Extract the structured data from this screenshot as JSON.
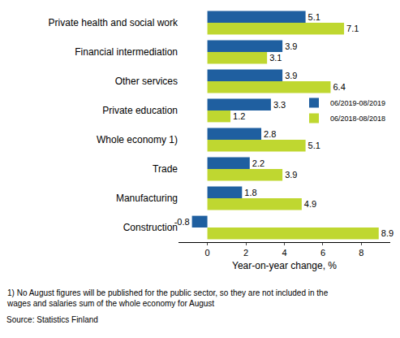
{
  "chart_data": {
    "type": "bar",
    "orientation": "horizontal",
    "categories": [
      "Private health and social work",
      "Financial intermediation",
      "Other services",
      "Private education",
      "Whole economy 1)",
      "Trade",
      "Manufacturing",
      "Construction"
    ],
    "series": [
      {
        "name": "06/2019-08/2019",
        "color": "#1f5fa0",
        "values": [
          5.1,
          3.9,
          3.9,
          3.3,
          2.8,
          2.2,
          1.8,
          -0.8
        ]
      },
      {
        "name": "06/2018-08/2018",
        "color": "#bfd730",
        "values": [
          7.1,
          3.1,
          6.4,
          1.2,
          5.1,
          3.9,
          4.9,
          8.9
        ]
      }
    ],
    "x_label": "Year-on-year change, %",
    "xlim": [
      -1.5,
      9.5
    ],
    "xticks": [
      0,
      2,
      4,
      6,
      8
    ],
    "grid": false,
    "legend": "right",
    "data_labels": true,
    "notes": [
      "1) No August figures will be published for the public sector, so they are not included in the",
      "wages and salaries sum of the whole economy for August"
    ],
    "source": "Source: Statistics Finland"
  }
}
